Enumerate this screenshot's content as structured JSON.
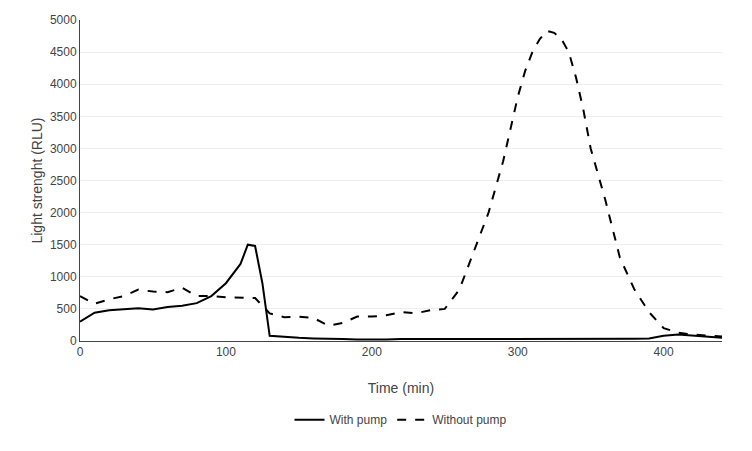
{
  "chart_data": {
    "type": "line",
    "xlabel": "Time (min)",
    "ylabel": "Light strenght (RLU)",
    "series": [
      {
        "name": "With pump",
        "color": "#000000",
        "line_style": "solid",
        "x": [
          0,
          10,
          20,
          30,
          40,
          50,
          60,
          70,
          80,
          90,
          100,
          110,
          115,
          120,
          125,
          130,
          140,
          150,
          160,
          170,
          180,
          190,
          200,
          210,
          220,
          230,
          240,
          250,
          260,
          270,
          280,
          290,
          300,
          310,
          320,
          330,
          340,
          350,
          360,
          370,
          380,
          390,
          400,
          410,
          420,
          430,
          440
        ],
        "values": [
          300,
          440,
          480,
          490,
          510,
          490,
          530,
          550,
          590,
          700,
          900,
          1200,
          1500,
          1480,
          900,
          80,
          60,
          50,
          40,
          30,
          30,
          25,
          20,
          25,
          30,
          30,
          30,
          30,
          25,
          30,
          30,
          30,
          35,
          30,
          30,
          35,
          35,
          30,
          30,
          30,
          35,
          40,
          80,
          100,
          80,
          60,
          50
        ]
      },
      {
        "name": "Without pump",
        "color": "#000000",
        "line_style": "dashed",
        "x": [
          0,
          10,
          20,
          30,
          40,
          50,
          60,
          70,
          80,
          90,
          100,
          110,
          120,
          130,
          140,
          150,
          160,
          170,
          180,
          190,
          200,
          210,
          220,
          230,
          240,
          250,
          260,
          270,
          280,
          290,
          295,
          300,
          305,
          310,
          315,
          320,
          325,
          330,
          335,
          340,
          345,
          350,
          360,
          370,
          380,
          390,
          400,
          410,
          420,
          430,
          440
        ],
        "values": [
          700,
          580,
          650,
          700,
          800,
          770,
          760,
          830,
          700,
          700,
          680,
          680,
          670,
          430,
          370,
          380,
          360,
          240,
          280,
          380,
          380,
          400,
          450,
          430,
          480,
          500,
          800,
          1400,
          2000,
          2800,
          3300,
          3800,
          4200,
          4500,
          4700,
          4830,
          4800,
          4700,
          4500,
          4100,
          3600,
          3000,
          2200,
          1300,
          800,
          450,
          200,
          130,
          100,
          80,
          70
        ]
      }
    ],
    "xlim": [
      0,
      440
    ],
    "ylim": [
      0,
      5000
    ],
    "xticks": [
      0,
      100,
      200,
      300,
      400
    ],
    "yticks": [
      0,
      500,
      1000,
      1500,
      2000,
      2500,
      3000,
      3500,
      4000,
      4500,
      5000
    ],
    "grid": "y",
    "legend": "bottom"
  }
}
